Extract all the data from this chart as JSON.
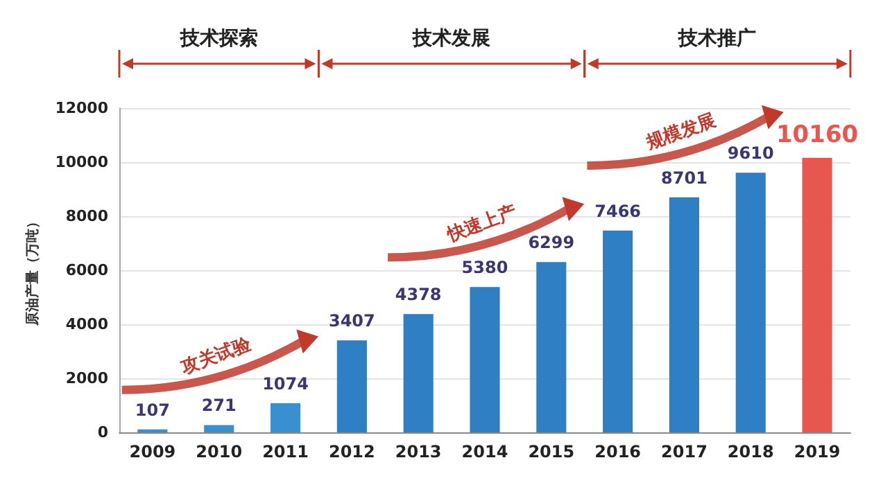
{
  "chart_data": {
    "type": "bar",
    "ylabel": "原油产量（万吨）",
    "categories": [
      "2009",
      "2010",
      "2011",
      "2012",
      "2013",
      "2014",
      "2015",
      "2016",
      "2017",
      "2018",
      "2019"
    ],
    "values": [
      107,
      271,
      1074,
      3407,
      4378,
      5380,
      6299,
      7466,
      8701,
      9610,
      10160
    ],
    "colors": [
      "#3a8fd0",
      "#3a8fd0",
      "#3a8fd0",
      "#2f7fc4",
      "#2f7fc4",
      "#2f7fc4",
      "#2f7fc4",
      "#2f7fc4",
      "#2f7fc4",
      "#2f7fc4",
      "#e8574f"
    ],
    "data_labels": true,
    "ylim": [
      0,
      12000
    ],
    "yticks": [
      0,
      2000,
      4000,
      6000,
      8000,
      10000,
      12000
    ],
    "grid": "y",
    "annotations": [
      "技术探索",
      "技术发展",
      "技术推广",
      "攻关试验",
      "快速上产",
      "规模发展"
    ]
  }
}
